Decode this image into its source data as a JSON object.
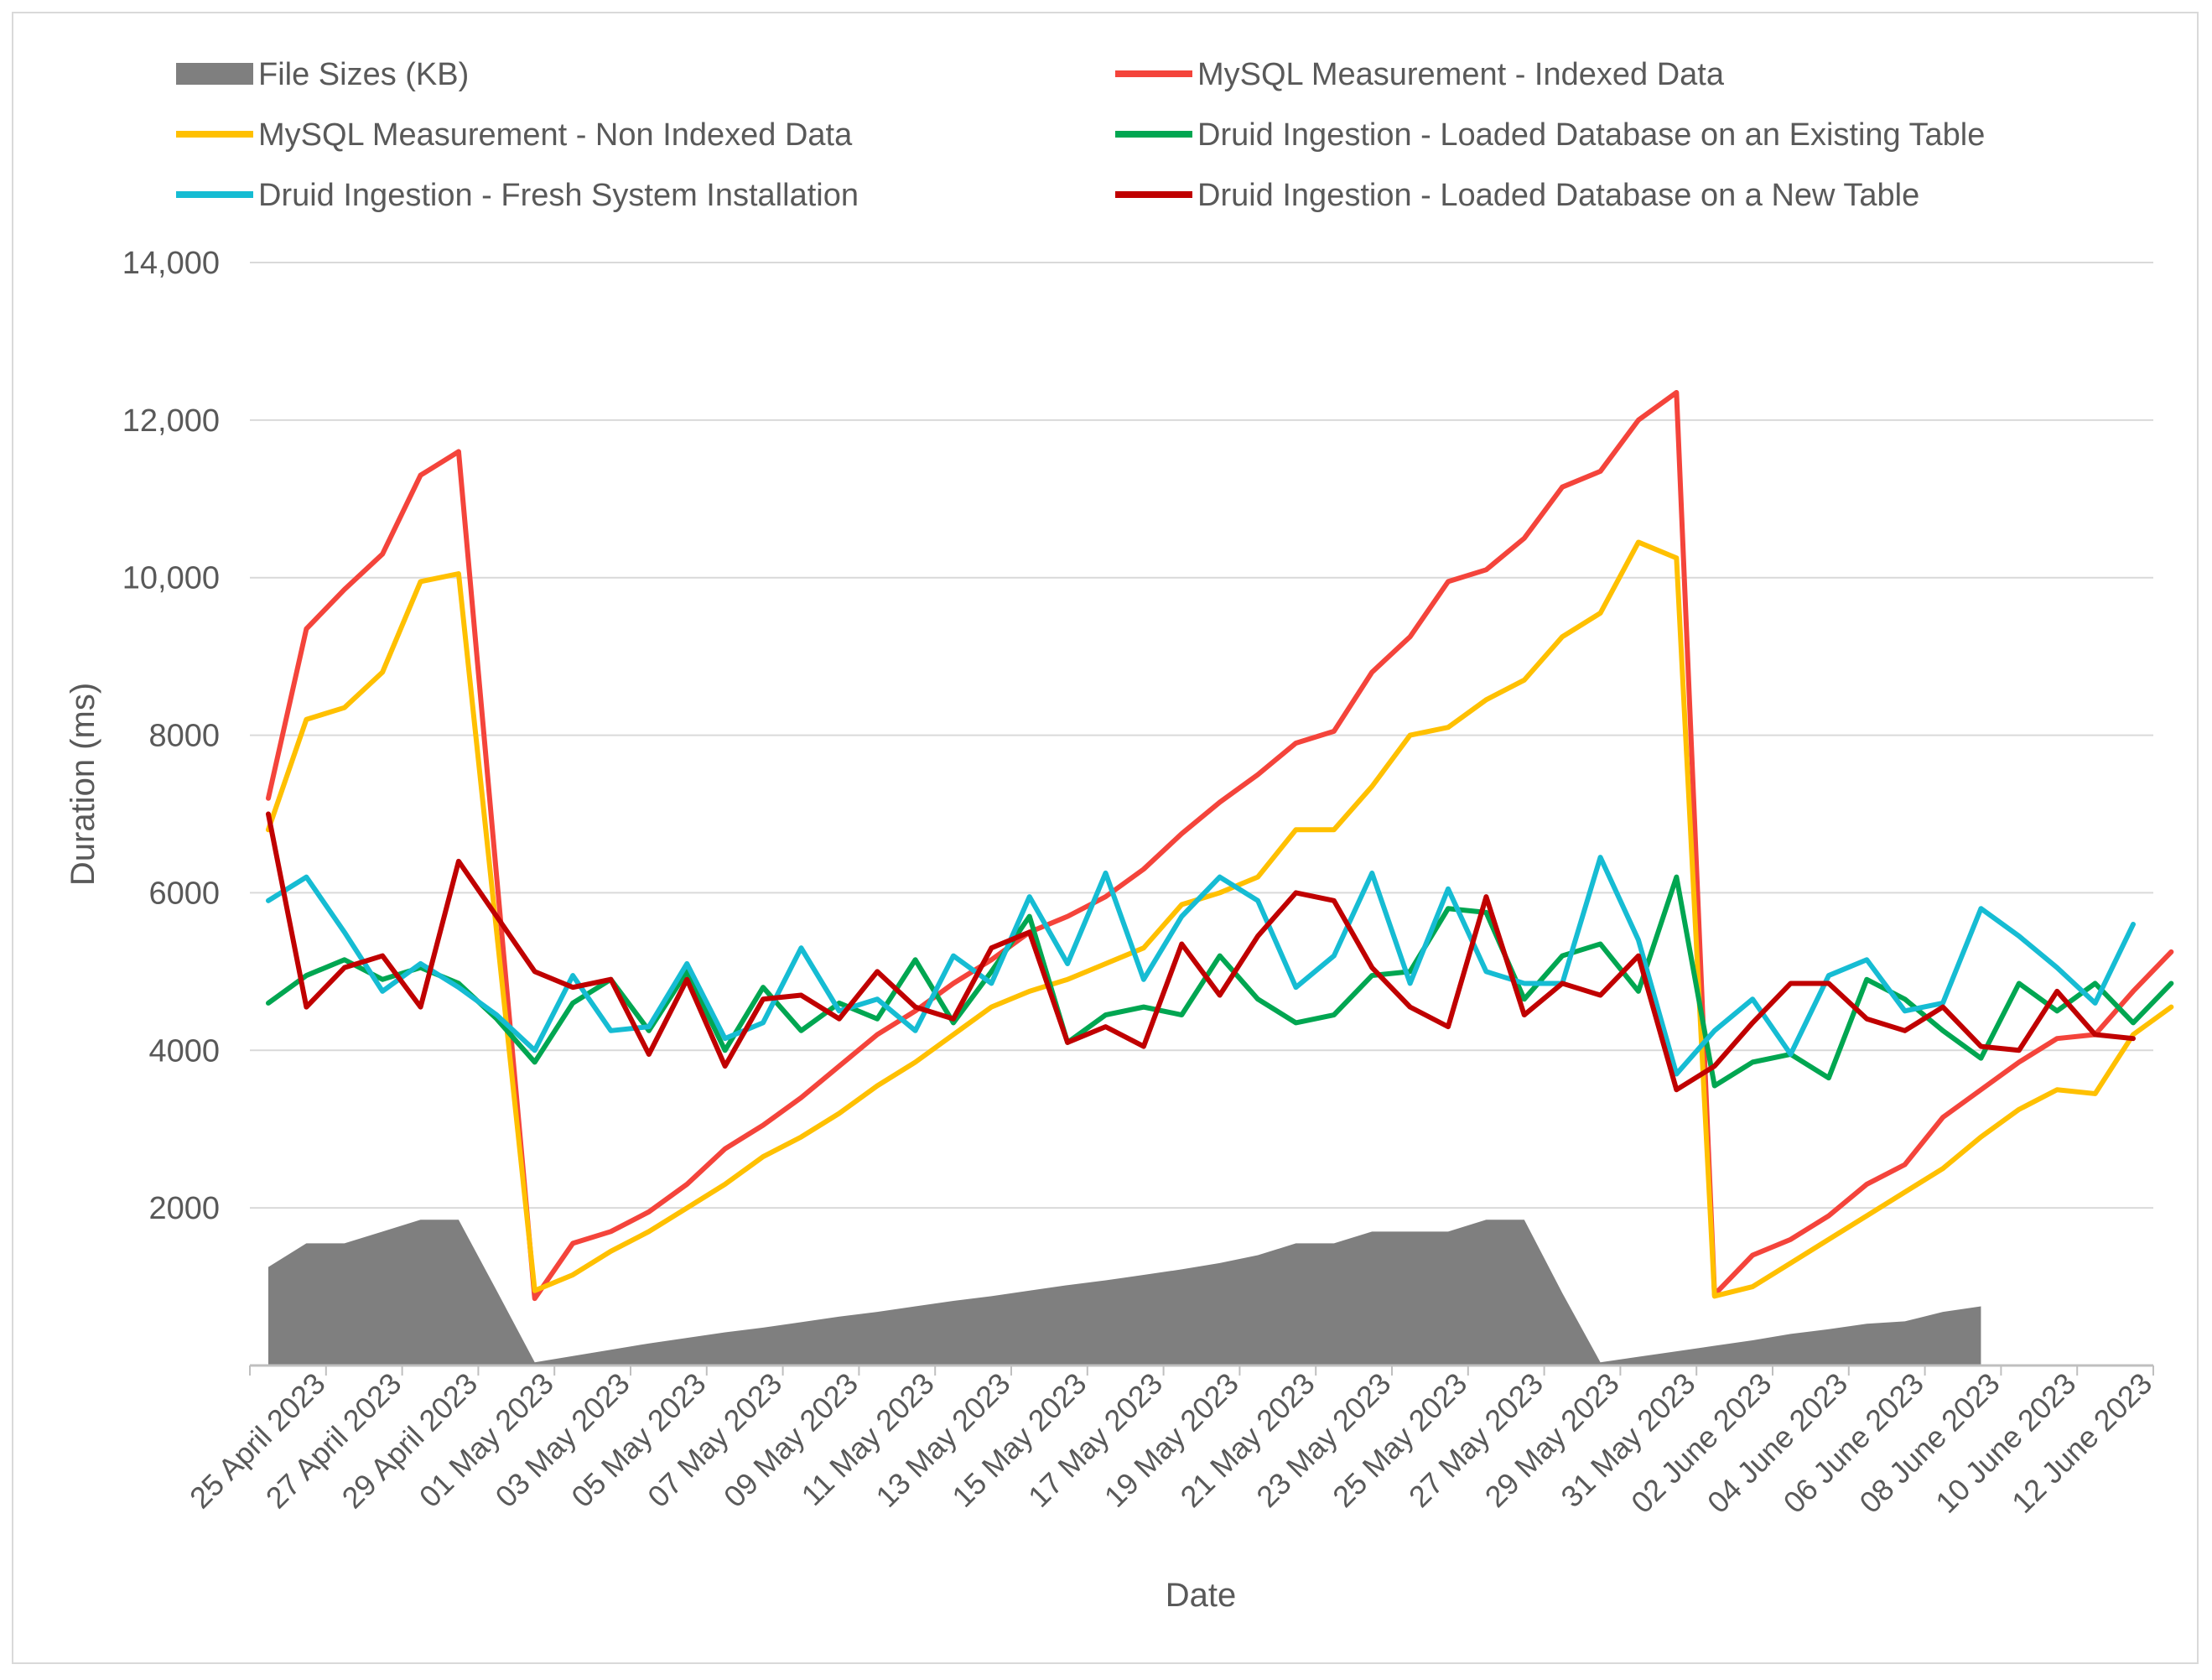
{
  "chart_data": {
    "type": "line",
    "xlabel": "Date",
    "ylabel": "Duration (ms)",
    "ylim": [
      0,
      14000
    ],
    "yticks": [
      {
        "value": 2000,
        "label": "2000"
      },
      {
        "value": 4000,
        "label": "4000"
      },
      {
        "value": 6000,
        "label": "6000"
      },
      {
        "value": 8000,
        "label": "8000"
      },
      {
        "value": 10000,
        "label": "10,000"
      },
      {
        "value": 12000,
        "label": "12,000"
      },
      {
        "value": 14000,
        "label": "14,000"
      }
    ],
    "xticks": [
      "25 April 2023",
      "27 April 2023",
      "29 April 2023",
      "01 May 2023",
      "03 May 2023",
      "05 May 2023",
      "07 May 2023",
      "09 May 2023",
      "11 May 2023",
      "13 May 2023",
      "15 May 2023",
      "17 May 2023",
      "19 May 2023",
      "21 May 2023",
      "23 May 2023",
      "25 May 2023",
      "27 May 2023",
      "29 May 2023",
      "31 May 2023",
      "02 June 2023",
      "04 June 2023",
      "06 June 2023",
      "08 June 2023",
      "10 June 2023",
      "12 June 2023"
    ],
    "grid": "horizontal",
    "legend_position": "top",
    "series": [
      {
        "name": "File Sizes (KB)",
        "kind": "area",
        "color": "#7f7f7f",
        "values": [
          1250,
          1550,
          1550,
          1700,
          1850,
          1850,
          950,
          40,
          120,
          200,
          280,
          350,
          420,
          480,
          550,
          620,
          680,
          750,
          820,
          880,
          950,
          1020,
          1080,
          1150,
          1220,
          1300,
          1400,
          1550,
          1550,
          1700,
          1700,
          1700,
          1850,
          1850,
          920,
          40,
          110,
          180,
          250,
          320,
          400,
          460,
          530,
          560,
          680,
          750
        ]
      },
      {
        "name": "MySQL Measurement - Indexed Data",
        "kind": "line",
        "color": "#f4443b",
        "values": [
          7200,
          9350,
          9850,
          10300,
          11300,
          11600,
          6200,
          850,
          1550,
          1700,
          1950,
          2300,
          2750,
          3050,
          3400,
          3800,
          4200,
          4500,
          4850,
          5150,
          5500,
          5700,
          5950,
          6300,
          6750,
          7150,
          7500,
          7900,
          8050,
          8800,
          9250,
          9950,
          10100,
          10500,
          11150,
          11350,
          12000,
          12350,
          900,
          1400,
          1600,
          1900,
          2300,
          2550,
          3150,
          3500,
          3850,
          4150,
          4200,
          4750,
          5250
        ]
      },
      {
        "name": "MySQL Measurement - Non Indexed Data",
        "kind": "line",
        "color": "#ffc000",
        "values": [
          6800,
          8200,
          8350,
          8800,
          9950,
          10050,
          5500,
          950,
          1150,
          1450,
          1700,
          2000,
          2300,
          2650,
          2900,
          3200,
          3550,
          3850,
          4200,
          4550,
          4750,
          4900,
          5100,
          5300,
          5850,
          6000,
          6200,
          6800,
          6800,
          7350,
          8000,
          8100,
          8450,
          8700,
          9250,
          9550,
          10450,
          10250,
          880,
          1000,
          1300,
          1600,
          1900,
          2200,
          2500,
          2900,
          3250,
          3500,
          3450,
          4200,
          4550
        ]
      },
      {
        "name": "Druid Ingestion - Loaded Database on an Existing Table",
        "kind": "line",
        "color": "#00a651",
        "values": [
          4600,
          4950,
          5150,
          4900,
          5050,
          4850,
          4400,
          3850,
          4600,
          4900,
          4250,
          5000,
          4000,
          4800,
          4250,
          4600,
          4400,
          5150,
          4350,
          5000,
          5700,
          4100,
          4450,
          4550,
          4450,
          5200,
          4650,
          4350,
          4450,
          4950,
          5000,
          5800,
          5750,
          4650,
          5200,
          5350,
          4750,
          6200,
          3550,
          3850,
          3950,
          3650,
          4900,
          4650,
          4250,
          3900,
          4850,
          4500,
          4850,
          4350,
          4850
        ]
      },
      {
        "name": "Druid Ingestion - Fresh System Installation",
        "kind": "line",
        "color": "#16bcd3",
        "values": [
          5900,
          6200,
          5500,
          4750,
          5100,
          4800,
          4450,
          4000,
          4950,
          4250,
          4300,
          5100,
          4150,
          4350,
          5300,
          4500,
          4650,
          4250,
          5200,
          4850,
          5950,
          5100,
          6250,
          4900,
          5700,
          6200,
          5900,
          4800,
          5200,
          6250,
          4850,
          6050,
          5000,
          4850,
          4850,
          6450,
          5400,
          3700,
          4250,
          4650,
          3950,
          4950,
          5150,
          4500,
          4600,
          5800,
          5450,
          5050,
          4600,
          5600
        ]
      },
      {
        "name": "Druid Ingestion - Loaded Database on a New Table",
        "kind": "line",
        "color": "#c00000",
        "values": [
          7000,
          4550,
          5050,
          5200,
          4550,
          6400,
          5700,
          5000,
          4800,
          4900,
          3950,
          4900,
          3800,
          4650,
          4700,
          4400,
          5000,
          4550,
          4400,
          5300,
          5500,
          4100,
          4300,
          4050,
          5350,
          4700,
          5450,
          6000,
          5900,
          5050,
          4550,
          4300,
          5950,
          4450,
          4850,
          4700,
          5200,
          3500,
          3800,
          4350,
          4850,
          4850,
          4400,
          4250,
          4550,
          4050,
          4000,
          4750,
          4200,
          4150
        ]
      }
    ]
  }
}
